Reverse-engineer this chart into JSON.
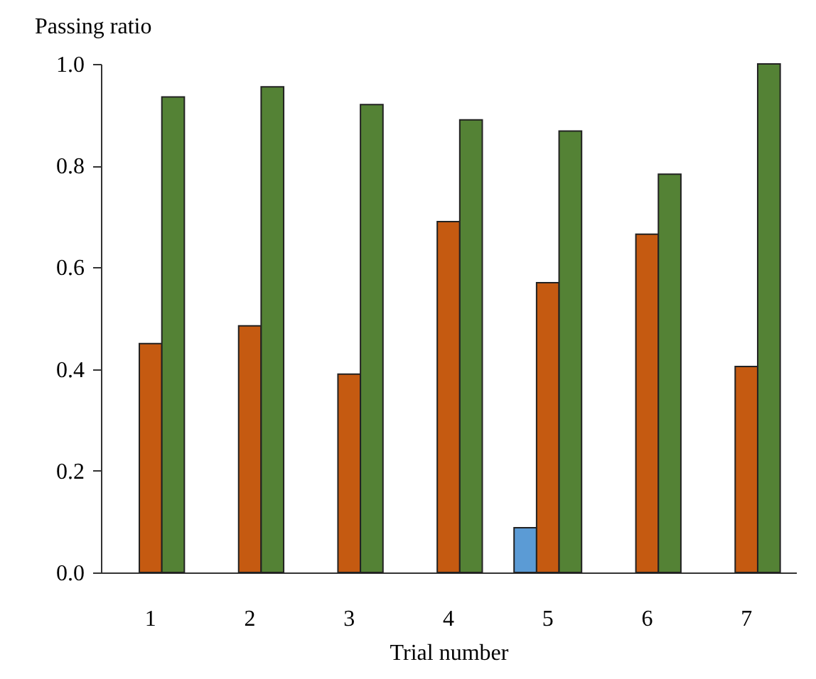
{
  "chart_data": {
    "type": "bar",
    "xlabel": "Trial number",
    "ylabel": "Passing ratio",
    "categories": [
      "1",
      "2",
      "3",
      "4",
      "5",
      "6",
      "7"
    ],
    "series": [
      {
        "color": "#5b9bd5",
        "values": [
          null,
          null,
          null,
          null,
          0.088,
          null,
          null
        ]
      },
      {
        "color": "#c55a11",
        "values": [
          0.45,
          0.485,
          0.39,
          0.69,
          0.57,
          0.665,
          0.405
        ]
      },
      {
        "color": "#548235",
        "values": [
          0.935,
          0.955,
          0.92,
          0.89,
          0.868,
          0.783,
          1.0
        ]
      }
    ],
    "ylim": [
      0,
      1
    ],
    "yticks": [
      {
        "value": 0,
        "label": "0.0"
      },
      {
        "value": 0.2,
        "label": "0.2"
      },
      {
        "value": 0.4,
        "label": "0.4"
      },
      {
        "value": 0.6,
        "label": "0.6"
      },
      {
        "value": 0.8,
        "label": "0.8"
      },
      {
        "value": 1,
        "label": "1.0"
      }
    ]
  }
}
